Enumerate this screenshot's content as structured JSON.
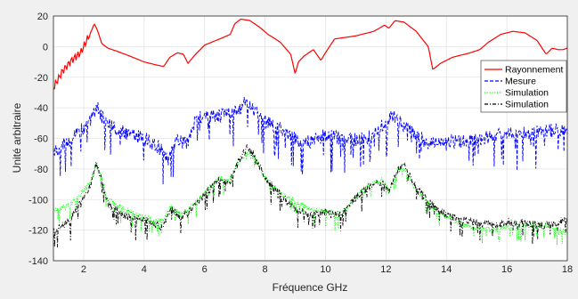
{
  "chart_data": {
    "type": "line",
    "title": "",
    "xlabel": "Fréquence GHz",
    "ylabel": "Unité arbitraire",
    "xlim": [
      1,
      18
    ],
    "ylim": [
      -140,
      20
    ],
    "xticks": [
      "2",
      "4",
      "6",
      "8",
      "10",
      "12",
      "14",
      "16",
      "18"
    ],
    "yticks": [
      "20",
      "0",
      "-20",
      "-40",
      "-60",
      "-80",
      "-100",
      "-120",
      "-140"
    ],
    "grid": true,
    "legend_position": "right",
    "series": [
      {
        "name": "Rayonnement",
        "color": "#ff0000",
        "style": "solid",
        "noise": 0,
        "x": [
          1,
          1.3,
          1.6,
          1.9,
          2.1,
          2.25,
          2.35,
          2.45,
          2.6,
          2.8,
          3.1,
          3.5,
          4.0,
          4.4,
          4.65,
          4.85,
          5.1,
          5.3,
          5.45,
          5.7,
          6.0,
          6.5,
          6.85,
          7.0,
          7.2,
          7.5,
          7.8,
          8.1,
          8.5,
          8.85,
          9.0,
          9.1,
          9.3,
          9.6,
          9.85,
          10.0,
          10.3,
          11.0,
          11.6,
          11.95,
          12.1,
          12.3,
          12.6,
          13.0,
          13.4,
          13.55,
          13.8,
          14.2,
          14.8,
          15.1,
          15.4,
          15.8,
          16.2,
          16.6,
          17.0,
          17.3,
          17.5,
          17.7,
          17.85,
          18
        ],
        "y": [
          -27,
          -16,
          -9,
          -4,
          4,
          10,
          15,
          11,
          2,
          -1,
          -3,
          -6,
          -10,
          -12,
          -13,
          -7,
          -4,
          -5,
          -11,
          -5,
          1,
          5,
          8,
          15,
          18,
          17,
          13,
          8,
          3,
          -5,
          -18,
          -10,
          -6,
          -2,
          -9,
          -4,
          5,
          7,
          10,
          14,
          12,
          17,
          16,
          10,
          0,
          -15,
          -11,
          -7,
          -4,
          -2,
          3,
          8,
          10,
          9,
          4,
          -5,
          -1,
          -2,
          -2,
          -1
        ]
      },
      {
        "name": "Mesure",
        "color": "#0000ff",
        "style": "dashed",
        "noise": 9,
        "x": [
          1,
          1.5,
          2.0,
          2.25,
          2.45,
          2.6,
          3.0,
          3.5,
          4.0,
          4.5,
          4.8,
          5.1,
          5.4,
          5.7,
          6.0,
          6.5,
          6.8,
          7.0,
          7.3,
          7.6,
          8.0,
          8.5,
          8.8,
          9.2,
          9.5,
          10.0,
          10.5,
          11.0,
          11.5,
          11.9,
          12.2,
          12.6,
          13.0,
          13.5,
          14.0,
          14.5,
          15.0,
          15.5,
          16.0,
          16.5,
          17.0,
          17.5,
          18
        ],
        "y": [
          -70,
          -62,
          -53,
          -47,
          -40,
          -46,
          -53,
          -57,
          -60,
          -66,
          -74,
          -60,
          -64,
          -48,
          -45,
          -45,
          -44,
          -43,
          -37,
          -41,
          -49,
          -53,
          -57,
          -63,
          -62,
          -58,
          -60,
          -61,
          -59,
          -51,
          -44,
          -52,
          -58,
          -64,
          -62,
          -62,
          -60,
          -59,
          -57,
          -57,
          -56,
          -55,
          -54
        ]
      },
      {
        "name": "Simulation",
        "color": "#00ff00",
        "style": "dotted",
        "noise": 4,
        "x": [
          1,
          1.5,
          1.9,
          2.2,
          2.4,
          2.55,
          2.8,
          3.3,
          3.8,
          4.3,
          4.6,
          4.9,
          5.2,
          5.5,
          6.0,
          6.5,
          6.8,
          7.1,
          7.4,
          7.7,
          8.0,
          8.5,
          9.0,
          9.5,
          10.0,
          10.5,
          11.0,
          11.5,
          11.9,
          12.1,
          12.4,
          12.6,
          13.0,
          13.5,
          14.0,
          14.5,
          15.0,
          15.5,
          16.0,
          16.5,
          17.0,
          17.5,
          18
        ],
        "y": [
          -107,
          -104,
          -96,
          -90,
          -76,
          -82,
          -100,
          -106,
          -110,
          -114,
          -114,
          -104,
          -110,
          -106,
          -96,
          -86,
          -89,
          -76,
          -69,
          -74,
          -86,
          -96,
          -101,
          -106,
          -108,
          -110,
          -98,
          -90,
          -87,
          -95,
          -80,
          -80,
          -93,
          -105,
          -111,
          -116,
          -119,
          -120,
          -118,
          -117,
          -116,
          -118,
          -122
        ]
      },
      {
        "name": "Simulation",
        "color": "#000000",
        "style": "dashdot",
        "noise": 5,
        "x": [
          1,
          1.5,
          1.9,
          2.2,
          2.4,
          2.55,
          2.8,
          3.3,
          3.8,
          4.3,
          4.6,
          4.9,
          5.2,
          5.5,
          6.0,
          6.5,
          6.8,
          7.1,
          7.4,
          7.7,
          8.0,
          8.5,
          9.0,
          9.5,
          10.0,
          10.5,
          11.0,
          11.5,
          11.9,
          12.1,
          12.4,
          12.6,
          13.0,
          13.5,
          14.0,
          14.5,
          15.0,
          15.5,
          16.0,
          16.5,
          17.0,
          17.5,
          18
        ],
        "y": [
          -120,
          -115,
          -101,
          -92,
          -76,
          -84,
          -103,
          -110,
          -113,
          -115,
          -118,
          -106,
          -112,
          -108,
          -97,
          -86,
          -90,
          -76,
          -66,
          -72,
          -86,
          -97,
          -106,
          -110,
          -108,
          -110,
          -99,
          -91,
          -88,
          -95,
          -80,
          -78,
          -92,
          -103,
          -110,
          -113,
          -115,
          -117,
          -115,
          -115,
          -117,
          -116,
          -113
        ]
      }
    ]
  }
}
